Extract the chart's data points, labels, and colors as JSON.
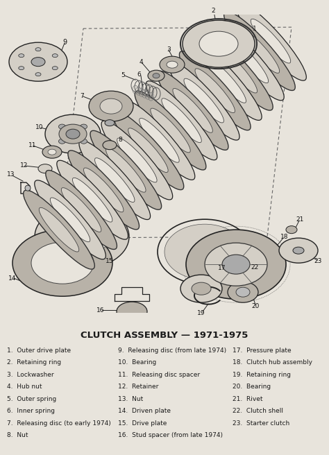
{
  "title": "CLUTCH ASSEMBLY — 1971-1975",
  "title_fontsize": 9.5,
  "bg_color": "#e8e4dc",
  "text_color": "#1a1a1a",
  "legend_fontsize": 6.5,
  "legend_col1": [
    "1.  Outer drive plate",
    "2.  Retaining ring",
    "3.  Lockwasher",
    "4.  Hub nut",
    "5.  Outer spring",
    "6.  Inner spring",
    "7.  Releasing disc (to early 1974)",
    "8.  Nut"
  ],
  "legend_col2": [
    "9.  Releasing disc (from late 1974)",
    "10.  Bearing",
    "11.  Releasing disc spacer",
    "12.  Retainer",
    "13.  Nut",
    "14.  Driven plate",
    "15.  Drive plate",
    "16.  Stud spacer (from late 1974)"
  ],
  "legend_col3": [
    "17.  Pressure plate",
    "18.  Clutch hub assembly",
    "19.  Retaining ring",
    "20.  Bearing",
    "21.  Rivet",
    "22.  Clutch shell",
    "23.  Starter clutch",
    ""
  ]
}
